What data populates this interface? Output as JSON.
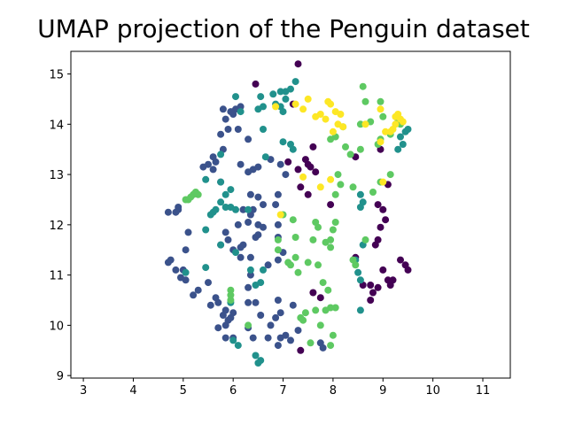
{
  "chart_data": {
    "type": "scatter",
    "title": "UMAP projection of the Penguin dataset",
    "xlabel": "",
    "ylabel": "",
    "xlim": [
      2.75,
      11.55
    ],
    "ylim": [
      8.95,
      15.45
    ],
    "xticks": [
      3,
      4,
      5,
      6,
      7,
      8,
      9,
      10,
      11
    ],
    "yticks": [
      9,
      10,
      11,
      12,
      13,
      14,
      15
    ],
    "grid": false,
    "legend": "none",
    "colormap": "viridis",
    "colors": {
      "dark_purple": "#440154",
      "indigo": "#3b528b",
      "teal": "#21918c",
      "green": "#5ec962",
      "yellow": "#fde725"
    },
    "series": [
      {
        "color_key": "dark_purple",
        "points": [
          [
            6.45,
            14.8
          ],
          [
            7.3,
            15.2
          ],
          [
            7.2,
            14.4
          ],
          [
            7.6,
            13.55
          ],
          [
            7.45,
            13.3
          ],
          [
            7.5,
            13.2
          ],
          [
            7.55,
            13.15
          ],
          [
            7.3,
            13.1
          ],
          [
            7.65,
            13.05
          ],
          [
            7.1,
            13.25
          ],
          [
            7.35,
            12.75
          ],
          [
            7.5,
            12.6
          ],
          [
            7.95,
            12.4
          ],
          [
            8.45,
            13.35
          ],
          [
            8.95,
            13.5
          ],
          [
            9.1,
            12.8
          ],
          [
            8.9,
            12.4
          ],
          [
            9.0,
            12.3
          ],
          [
            9.05,
            12.1
          ],
          [
            8.95,
            11.95
          ],
          [
            8.9,
            11.7
          ],
          [
            8.85,
            11.6
          ],
          [
            9.35,
            11.3
          ],
          [
            9.45,
            11.2
          ],
          [
            9.5,
            11.1
          ],
          [
            9.0,
            11.1
          ],
          [
            9.1,
            10.9
          ],
          [
            9.15,
            10.8
          ],
          [
            9.2,
            10.9
          ],
          [
            8.75,
            10.8
          ],
          [
            8.8,
            10.65
          ],
          [
            8.9,
            10.75
          ],
          [
            8.75,
            10.5
          ],
          [
            8.6,
            10.8
          ],
          [
            7.6,
            10.65
          ],
          [
            7.75,
            10.55
          ],
          [
            7.35,
            9.5
          ],
          [
            8.45,
            11.35
          ]
        ]
      },
      {
        "color_key": "indigo",
        "points": [
          [
            6.05,
            14.3
          ],
          [
            6.15,
            14.35
          ],
          [
            6.0,
            14.2
          ],
          [
            5.85,
            14.1
          ],
          [
            5.95,
            14.25
          ],
          [
            5.8,
            14.3
          ],
          [
            5.9,
            13.9
          ],
          [
            5.75,
            13.8
          ],
          [
            6.1,
            13.9
          ],
          [
            6.3,
            13.7
          ],
          [
            5.8,
            13.5
          ],
          [
            5.6,
            13.35
          ],
          [
            5.65,
            13.25
          ],
          [
            5.5,
            13.2
          ],
          [
            5.6,
            13.1
          ],
          [
            5.4,
            13.15
          ],
          [
            5.75,
            12.85
          ],
          [
            6.15,
            13.2
          ],
          [
            6.3,
            13.05
          ],
          [
            6.4,
            13.1
          ],
          [
            6.5,
            13.15
          ],
          [
            6.75,
            13.3
          ],
          [
            6.95,
            13.2
          ],
          [
            7.05,
            13.0
          ],
          [
            6.35,
            12.6
          ],
          [
            6.5,
            12.55
          ],
          [
            6.6,
            12.4
          ],
          [
            6.4,
            12.3
          ],
          [
            6.2,
            12.3
          ],
          [
            6.35,
            12.2
          ],
          [
            6.1,
            12.0
          ],
          [
            6.3,
            12.05
          ],
          [
            6.5,
            12.0
          ],
          [
            6.6,
            11.95
          ],
          [
            6.45,
            11.75
          ],
          [
            6.5,
            11.8
          ],
          [
            6.9,
            12.6
          ],
          [
            6.85,
            12.4
          ],
          [
            6.9,
            12.0
          ],
          [
            6.9,
            11.75
          ],
          [
            7.0,
            11.45
          ],
          [
            6.9,
            11.3
          ],
          [
            6.7,
            11.2
          ],
          [
            6.35,
            11.35
          ],
          [
            6.2,
            11.6
          ],
          [
            6.15,
            11.55
          ],
          [
            6.0,
            11.5
          ],
          [
            5.85,
            11.85
          ],
          [
            5.9,
            11.7
          ],
          [
            5.75,
            11.6
          ],
          [
            5.1,
            11.85
          ],
          [
            5.05,
            11.5
          ],
          [
            5.0,
            11.1
          ],
          [
            4.95,
            10.95
          ],
          [
            5.05,
            10.9
          ],
          [
            5.2,
            10.6
          ],
          [
            5.3,
            10.7
          ],
          [
            5.5,
            10.85
          ],
          [
            5.65,
            10.55
          ],
          [
            5.55,
            10.4
          ],
          [
            5.7,
            10.45
          ],
          [
            5.85,
            10.3
          ],
          [
            5.8,
            10.2
          ],
          [
            5.9,
            10.1
          ],
          [
            5.95,
            10.15
          ],
          [
            6.0,
            10.25
          ],
          [
            5.85,
            10.0
          ],
          [
            5.7,
            9.95
          ],
          [
            6.0,
            9.75
          ],
          [
            5.85,
            9.75
          ],
          [
            6.3,
            9.95
          ],
          [
            6.4,
            9.75
          ],
          [
            6.7,
            9.75
          ],
          [
            6.9,
            9.6
          ],
          [
            6.95,
            9.75
          ],
          [
            7.05,
            9.8
          ],
          [
            7.15,
            9.7
          ],
          [
            7.3,
            9.9
          ],
          [
            7.2,
            10.4
          ],
          [
            6.95,
            10.25
          ],
          [
            6.85,
            10.15
          ],
          [
            6.75,
            10.0
          ],
          [
            6.55,
            10.2
          ],
          [
            6.9,
            10.5
          ],
          [
            6.45,
            10.45
          ],
          [
            6.3,
            10.45
          ],
          [
            6.3,
            10.75
          ],
          [
            6.35,
            11.0
          ],
          [
            4.7,
            12.25
          ],
          [
            4.85,
            12.25
          ],
          [
            4.9,
            12.35
          ],
          [
            4.9,
            12.3
          ],
          [
            4.7,
            11.25
          ],
          [
            4.75,
            11.3
          ],
          [
            4.85,
            11.1
          ],
          [
            7.75,
            9.65
          ],
          [
            7.8,
            9.55
          ],
          [
            6.15,
            11.35
          ]
        ]
      },
      {
        "color_key": "teal",
        "points": [
          [
            6.55,
            14.55
          ],
          [
            6.8,
            14.6
          ],
          [
            6.95,
            14.65
          ],
          [
            7.05,
            14.65
          ],
          [
            7.15,
            14.7
          ],
          [
            7.25,
            14.85
          ],
          [
            7.05,
            14.5
          ],
          [
            6.85,
            14.4
          ],
          [
            6.6,
            14.35
          ],
          [
            6.95,
            14.35
          ],
          [
            7.0,
            14.25
          ],
          [
            6.5,
            14.3
          ],
          [
            6.05,
            14.55
          ],
          [
            6.15,
            14.25
          ],
          [
            6.6,
            13.9
          ],
          [
            7.0,
            13.65
          ],
          [
            7.15,
            13.6
          ],
          [
            7.2,
            13.5
          ],
          [
            6.65,
            13.35
          ],
          [
            5.75,
            13.4
          ],
          [
            5.45,
            12.9
          ],
          [
            5.75,
            12.85
          ],
          [
            5.95,
            12.7
          ],
          [
            5.85,
            12.6
          ],
          [
            5.75,
            12.45
          ],
          [
            5.6,
            12.25
          ],
          [
            5.65,
            12.3
          ],
          [
            5.85,
            12.35
          ],
          [
            5.95,
            12.35
          ],
          [
            6.05,
            12.3
          ],
          [
            5.55,
            12.2
          ],
          [
            5.45,
            11.9
          ],
          [
            5.75,
            11.6
          ],
          [
            6.05,
            11.45
          ],
          [
            5.45,
            11.15
          ],
          [
            6.35,
            11.1
          ],
          [
            6.6,
            11.1
          ],
          [
            6.45,
            10.8
          ],
          [
            5.05,
            11.05
          ],
          [
            5.95,
            10.45
          ],
          [
            6.0,
            9.7
          ],
          [
            6.1,
            9.6
          ],
          [
            6.45,
            9.4
          ],
          [
            6.55,
            9.3
          ],
          [
            6.5,
            9.25
          ],
          [
            8.55,
            12.35
          ],
          [
            8.6,
            12.45
          ],
          [
            8.55,
            12.6
          ],
          [
            8.6,
            11.6
          ],
          [
            8.45,
            11.3
          ],
          [
            8.5,
            11.05
          ],
          [
            8.55,
            10.9
          ],
          [
            8.55,
            10.3
          ],
          [
            9.35,
            13.75
          ],
          [
            9.4,
            13.6
          ],
          [
            9.3,
            13.5
          ],
          [
            9.45,
            13.85
          ],
          [
            9.5,
            13.9
          ],
          [
            6.3,
            12.3
          ],
          [
            6.55,
            10.85
          ]
        ]
      },
      {
        "color_key": "green",
        "points": [
          [
            8.6,
            14.75
          ],
          [
            8.65,
            14.45
          ],
          [
            8.95,
            14.45
          ],
          [
            9.0,
            14.15
          ],
          [
            8.75,
            14.05
          ],
          [
            8.55,
            14.0
          ],
          [
            8.2,
            13.95
          ],
          [
            8.05,
            13.75
          ],
          [
            7.95,
            13.7
          ],
          [
            8.25,
            13.55
          ],
          [
            8.55,
            13.5
          ],
          [
            8.35,
            13.4
          ],
          [
            8.9,
            13.6
          ],
          [
            8.95,
            13.7
          ],
          [
            9.3,
            14.1
          ],
          [
            9.35,
            14.0
          ],
          [
            9.15,
            13.8
          ],
          [
            8.8,
            12.65
          ],
          [
            8.95,
            12.85
          ],
          [
            9.15,
            13.0
          ],
          [
            8.4,
            12.75
          ],
          [
            8.15,
            12.8
          ],
          [
            8.1,
            13.0
          ],
          [
            8.05,
            12.6
          ],
          [
            8.05,
            12.05
          ],
          [
            8.0,
            11.9
          ],
          [
            7.95,
            11.7
          ],
          [
            7.85,
            11.65
          ],
          [
            7.95,
            11.55
          ],
          [
            8.65,
            11.7
          ],
          [
            7.7,
            11.95
          ],
          [
            7.65,
            12.05
          ],
          [
            7.6,
            11.7
          ],
          [
            7.2,
            12.1
          ],
          [
            7.0,
            12.2
          ],
          [
            7.25,
            11.75
          ],
          [
            6.9,
            11.7
          ],
          [
            6.9,
            11.5
          ],
          [
            7.25,
            11.35
          ],
          [
            7.15,
            11.2
          ],
          [
            7.1,
            11.25
          ],
          [
            7.5,
            11.25
          ],
          [
            7.7,
            11.2
          ],
          [
            8.4,
            11.3
          ],
          [
            8.45,
            11.2
          ],
          [
            7.3,
            11.05
          ],
          [
            7.8,
            10.85
          ],
          [
            7.9,
            10.7
          ],
          [
            7.95,
            10.35
          ],
          [
            7.85,
            10.3
          ],
          [
            8.05,
            10.35
          ],
          [
            7.65,
            10.3
          ],
          [
            7.45,
            10.25
          ],
          [
            7.35,
            10.15
          ],
          [
            7.4,
            10.1
          ],
          [
            7.75,
            10.0
          ],
          [
            8.0,
            9.8
          ],
          [
            7.55,
            9.65
          ],
          [
            7.95,
            9.6
          ],
          [
            5.2,
            12.6
          ],
          [
            5.15,
            12.55
          ],
          [
            5.25,
            12.65
          ],
          [
            5.3,
            12.6
          ],
          [
            5.05,
            12.5
          ],
          [
            5.1,
            12.5
          ],
          [
            5.95,
            10.7
          ],
          [
            5.95,
            10.6
          ],
          [
            5.95,
            10.5
          ],
          [
            6.3,
            10.0
          ]
        ]
      },
      {
        "color_key": "yellow",
        "points": [
          [
            7.25,
            14.4
          ],
          [
            7.5,
            14.5
          ],
          [
            7.4,
            14.3
          ],
          [
            7.9,
            14.45
          ],
          [
            7.95,
            14.4
          ],
          [
            7.75,
            14.2
          ],
          [
            7.85,
            14.1
          ],
          [
            8.05,
            14.25
          ],
          [
            8.15,
            14.2
          ],
          [
            7.65,
            14.15
          ],
          [
            8.0,
            13.85
          ],
          [
            8.1,
            14.0
          ],
          [
            8.2,
            13.95
          ],
          [
            8.65,
            14.0
          ],
          [
            9.25,
            14.15
          ],
          [
            9.3,
            14.2
          ],
          [
            9.35,
            14.1
          ],
          [
            9.25,
            14.0
          ],
          [
            9.4,
            14.05
          ],
          [
            9.2,
            13.9
          ],
          [
            9.15,
            13.85
          ],
          [
            8.95,
            13.65
          ],
          [
            9.05,
            13.85
          ],
          [
            7.75,
            12.75
          ],
          [
            7.95,
            12.9
          ],
          [
            7.4,
            12.95
          ],
          [
            9.0,
            12.85
          ],
          [
            6.95,
            12.2
          ],
          [
            6.85,
            14.35
          ],
          [
            8.95,
            14.3
          ]
        ]
      }
    ]
  }
}
